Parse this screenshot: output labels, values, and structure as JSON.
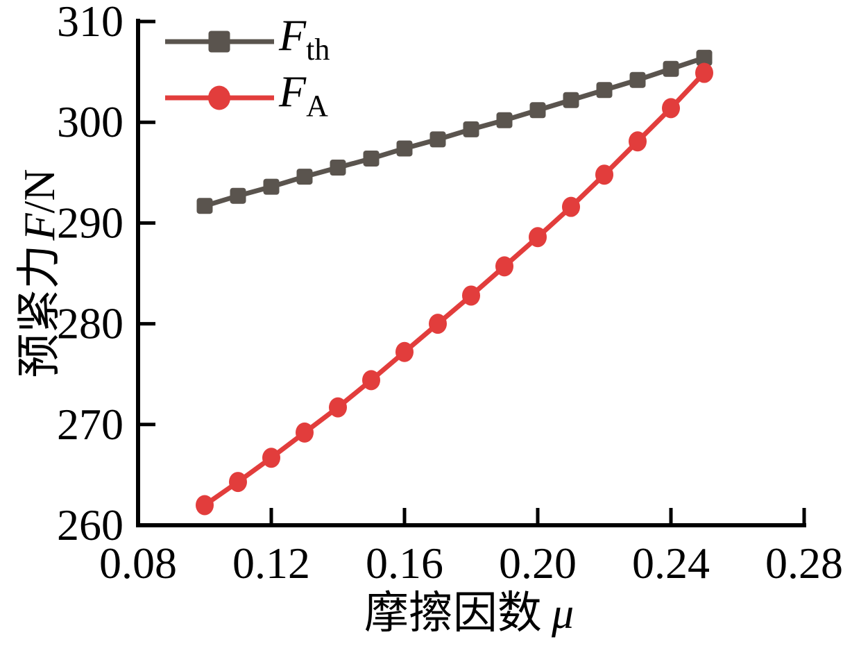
{
  "figure": {
    "background_color": "#ffffff",
    "axis_color": "#000000",
    "x_axis": {
      "label_cjk": "摩擦因数",
      "label_symbol": "μ",
      "tick_labels": [
        "0.08",
        "0.12",
        "0.16",
        "0.20",
        "0.24",
        "0.28"
      ]
    },
    "y_axis": {
      "label_cjk": "预紧力",
      "label_symbol": "F",
      "label_unit": "/N",
      "tick_labels": [
        "260",
        "270",
        "280",
        "290",
        "300",
        "310"
      ]
    },
    "legend": {
      "position": "top-left",
      "entries": [
        {
          "id": "fth",
          "label_main": "F",
          "label_sub": "th",
          "color": "#5a544e",
          "marker": "square"
        },
        {
          "id": "fa",
          "label_main": "F",
          "label_sub": "A",
          "color": "#e23d3c",
          "marker": "circle"
        }
      ]
    }
  },
  "chart_data": {
    "type": "line",
    "title": "",
    "xlabel": "摩擦因数 μ",
    "ylabel": "预紧力 F/N",
    "xlim": [
      0.08,
      0.28
    ],
    "ylim": [
      260,
      310
    ],
    "x_ticks": [
      0.08,
      0.12,
      0.16,
      0.2,
      0.24,
      0.28
    ],
    "y_ticks": [
      260,
      270,
      280,
      290,
      300,
      310
    ],
    "grid": false,
    "legend_position": "top-left",
    "x": [
      0.1,
      0.11,
      0.12,
      0.13,
      0.14,
      0.15,
      0.16,
      0.17,
      0.18,
      0.19,
      0.2,
      0.21,
      0.22,
      0.23,
      0.24,
      0.25
    ],
    "series": [
      {
        "name": "F_th",
        "marker": "square",
        "color": "#5a544e",
        "values": [
          291.7,
          292.7,
          293.6,
          294.6,
          295.5,
          296.4,
          297.4,
          298.3,
          299.3,
          300.2,
          301.2,
          302.2,
          303.2,
          304.2,
          305.3,
          306.4
        ]
      },
      {
        "name": "F_A",
        "marker": "circle",
        "color": "#e23d3c",
        "values": [
          262.0,
          264.3,
          266.7,
          269.2,
          271.7,
          274.4,
          277.2,
          280.0,
          282.8,
          285.7,
          288.6,
          291.6,
          294.8,
          298.1,
          301.4,
          304.9
        ]
      }
    ]
  }
}
